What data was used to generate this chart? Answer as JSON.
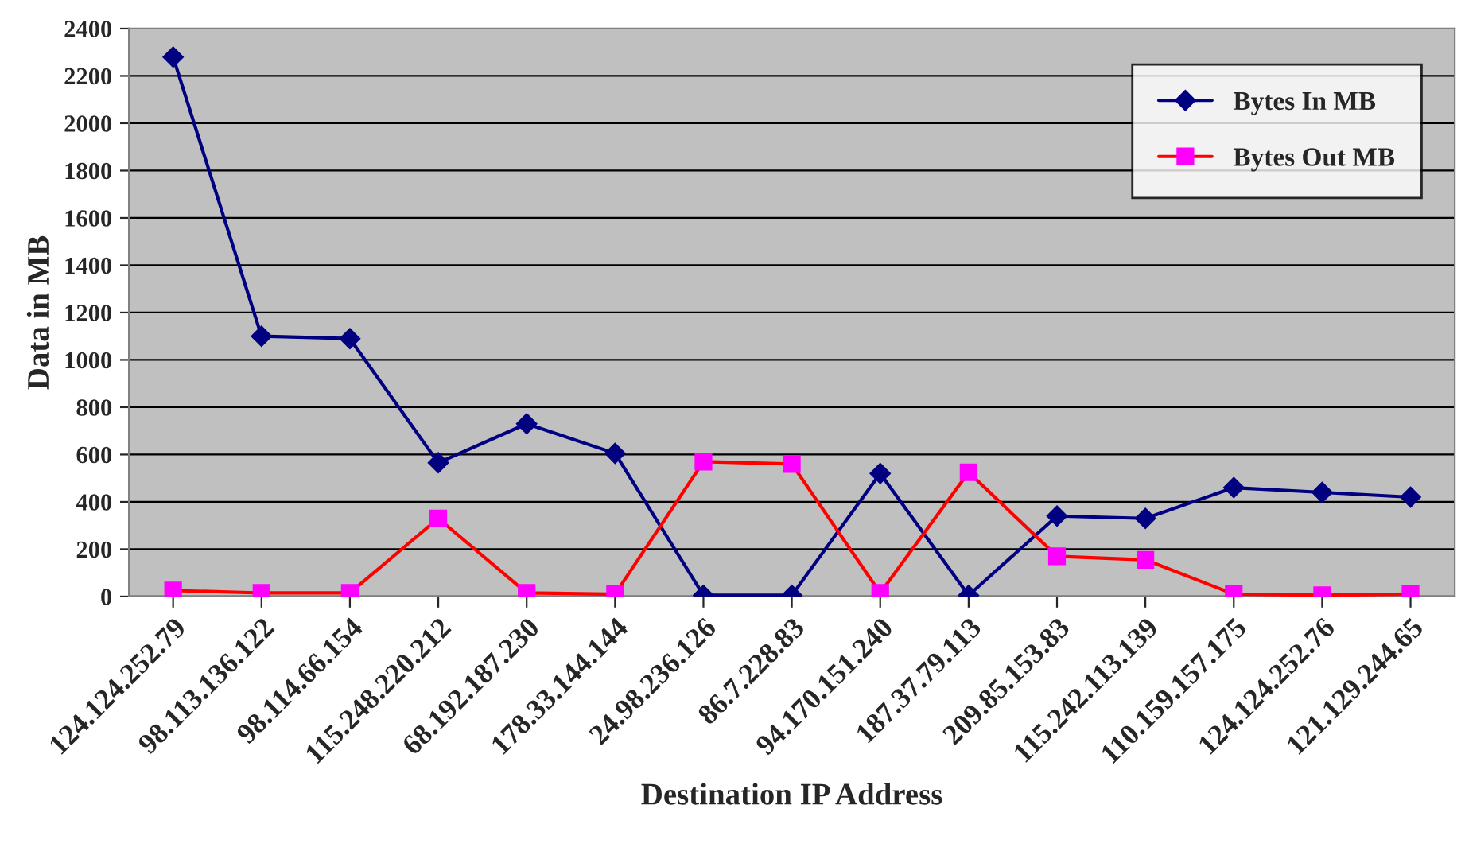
{
  "chart_data": {
    "type": "line",
    "xlabel": "Destination IP Address",
    "ylabel": "Data in MB",
    "categories": [
      "124.124.252.79",
      "98.113.136.122",
      "98.114.66.154",
      "115.248.220.212",
      "68.192.187.230",
      "178.33.144.144",
      "24.98.236.126",
      "86.7.228.83",
      "94.170.151.240",
      "187.37.79.113",
      "209.85.153.83",
      "115.242.113.139",
      "110.159.157.175",
      "124.124.252.76",
      "121.129.244.65"
    ],
    "series": [
      {
        "name": "Bytes In MB",
        "color": "#000080",
        "marker": "diamond",
        "values": [
          2280,
          1100,
          1090,
          565,
          730,
          605,
          5,
          5,
          520,
          5,
          340,
          330,
          460,
          440,
          420
        ]
      },
      {
        "name": "Bytes Out MB",
        "color": "#ff0000",
        "colors": [
          "#ff00ff",
          "#ff00ff",
          "#ff00ff",
          "#ff00ff",
          "#ff00ff",
          "#ff00ff",
          "#ff00ff",
          "#ff00ff",
          "#ff00ff",
          "#ff00ff",
          "#ff00ff",
          "#ff00ff",
          "#ff00ff",
          "#ff00ff",
          "#ff00ff"
        ],
        "marker": "square",
        "values": [
          25,
          15,
          15,
          330,
          15,
          10,
          570,
          560,
          15,
          525,
          170,
          155,
          10,
          5,
          10
        ]
      }
    ],
    "ylim": [
      0,
      2400
    ],
    "yticks": [
      0,
      200,
      400,
      600,
      800,
      1000,
      1200,
      1400,
      1600,
      1800,
      2000,
      2200,
      2400
    ],
    "grid": "y",
    "legend": "top right",
    "line_style": "solid"
  }
}
